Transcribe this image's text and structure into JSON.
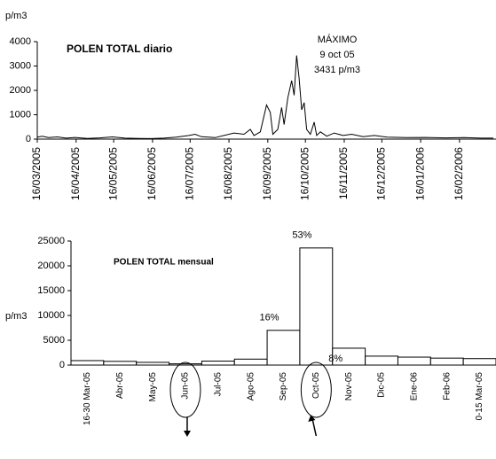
{
  "chart_data": [
    {
      "type": "line",
      "title": "POLEN TOTAL diario",
      "y_label": "p/m3",
      "annotations": [
        "MÁXIMO",
        "9 oct 05",
        "3431 p/m3"
      ],
      "x": [
        "2005-03-16",
        "2005-03-20",
        "2005-03-25",
        "2005-04-01",
        "2005-04-08",
        "2005-04-15",
        "2005-04-25",
        "2005-05-05",
        "2005-05-15",
        "2005-05-25",
        "2005-06-05",
        "2005-06-15",
        "2005-06-25",
        "2005-07-05",
        "2005-07-15",
        "2005-07-20",
        "2005-07-25",
        "2005-08-05",
        "2005-08-12",
        "2005-08-20",
        "2005-08-28",
        "2005-09-02",
        "2005-09-05",
        "2005-09-10",
        "2005-09-15",
        "2005-09-18",
        "2005-09-20",
        "2005-09-24",
        "2005-09-27",
        "2005-09-29",
        "2005-10-02",
        "2005-10-05",
        "2005-10-07",
        "2005-10-09",
        "2005-10-11",
        "2005-10-13",
        "2005-10-15",
        "2005-10-17",
        "2005-10-20",
        "2005-10-23",
        "2005-10-25",
        "2005-10-28",
        "2005-11-02",
        "2005-11-08",
        "2005-11-15",
        "2005-11-22",
        "2005-12-01",
        "2005-12-10",
        "2005-12-20",
        "2006-01-05",
        "2006-01-20",
        "2006-02-05",
        "2006-02-20",
        "2006-03-05",
        "2006-03-15"
      ],
      "series": [
        {
          "color": "#000000",
          "values": [
            80,
            120,
            60,
            90,
            40,
            70,
            30,
            50,
            90,
            40,
            30,
            20,
            40,
            80,
            150,
            200,
            100,
            60,
            150,
            250,
            200,
            400,
            150,
            300,
            1400,
            1100,
            200,
            400,
            1300,
            600,
            1700,
            2400,
            1800,
            3431,
            2500,
            1200,
            1500,
            400,
            200,
            700,
            150,
            300,
            120,
            250,
            150,
            200,
            100,
            150,
            80,
            60,
            70,
            50,
            60,
            40,
            40
          ]
        }
      ],
      "xlim": [
        "2005-03-16",
        "2006-03-15"
      ],
      "xticks": [
        {
          "value": "2005-03-16",
          "label": "16/03/2005"
        },
        {
          "value": "2005-04-16",
          "label": "16/04/2005"
        },
        {
          "value": "2005-05-16",
          "label": "16/05/2005"
        },
        {
          "value": "2005-06-16",
          "label": "16/06/2005"
        },
        {
          "value": "2005-07-16",
          "label": "16/07/2005"
        },
        {
          "value": "2005-08-16",
          "label": "16/08/2005"
        },
        {
          "value": "2005-09-16",
          "label": "16/09/2005"
        },
        {
          "value": "2005-10-16",
          "label": "16/10/2005"
        },
        {
          "value": "2005-11-16",
          "label": "16/11/2005"
        },
        {
          "value": "2005-12-16",
          "label": "16/12/2005"
        },
        {
          "value": "2006-01-16",
          "label": "16/01/2006"
        },
        {
          "value": "2006-02-16",
          "label": "16/02/2006"
        }
      ],
      "ylim": [
        0,
        4000
      ],
      "yticks": [
        0,
        1000,
        2000,
        3000,
        4000
      ]
    },
    {
      "type": "bar",
      "title": "POLEN TOTAL mensual",
      "y_label": "p/m3",
      "categories": [
        "16-30 Mar-05",
        "Abr-05",
        "May-05",
        "Jun-05",
        "Jul-05",
        "Ago-05",
        "Sep-05",
        "Oct-05",
        "Nov-05",
        "Dic-05",
        "Ene-06",
        "Feb-06",
        "0-15 Mar-05"
      ],
      "values": [
        900,
        750,
        550,
        250,
        800,
        1200,
        7000,
        23600,
        3400,
        1800,
        1600,
        1400,
        1300
      ],
      "color": "#ffffff",
      "annotations": [
        {
          "text": "16%",
          "category": "Sep-05"
        },
        {
          "text": "53%",
          "category": "Oct-05"
        },
        {
          "text": "8%",
          "category": "Nov-05"
        }
      ],
      "highlight": [
        "Jun-05",
        "Oct-05"
      ],
      "ylim": [
        0,
        25000
      ],
      "yticks": [
        0,
        5000,
        10000,
        15000,
        20000,
        25000
      ]
    }
  ]
}
